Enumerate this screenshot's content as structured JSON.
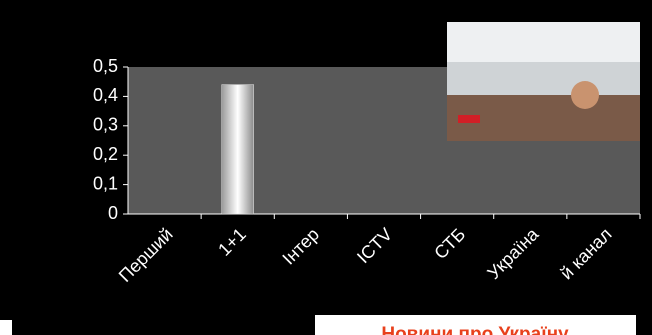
{
  "chart_data": {
    "type": "bar",
    "categories": [
      "Перший",
      "1+1",
      "Інтер",
      "ICTV",
      "СТБ",
      "Україна",
      "й канал"
    ],
    "values": [
      0,
      0.44,
      0,
      0,
      0,
      0,
      0
    ],
    "color": "#e8e8e8",
    "ylim": [
      0,
      0.5
    ],
    "yticks": [
      0,
      {
        "value": 0.1,
        "label": "0,1"
      },
      {
        "value": 0.2,
        "label": "0,2"
      },
      {
        "value": 0.3,
        "label": "0,3"
      },
      {
        "value": 0.4,
        "label": "0,4"
      },
      {
        "value": 0.5,
        "label": "0,5"
      }
    ],
    "grid": false
  },
  "overlay_caption": "Новини про Україну"
}
